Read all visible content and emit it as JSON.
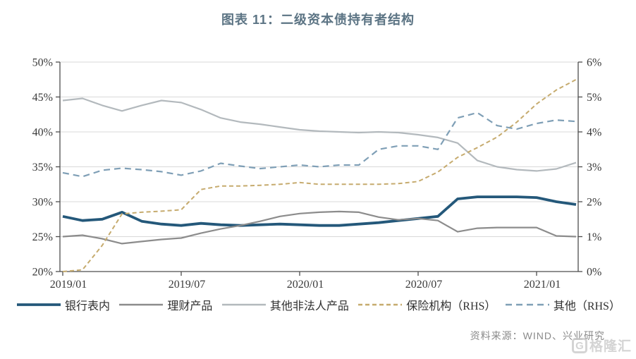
{
  "title": "图表 11：二级资本债持有者结构",
  "source": "资料来源：WIND、兴业研究",
  "watermark": {
    "icon": "G",
    "text": "格隆汇"
  },
  "colors": {
    "title": "#5c7484",
    "axis_text": "#3a3a3a",
    "axis_line": "#4d4d4d",
    "grid": "#d9d9d9",
    "source_text": "#8a8a8a",
    "watermark": "#c6c6c6"
  },
  "chart_data": {
    "type": "line",
    "x_labels": [
      "2019/01",
      "2019/02",
      "2019/03",
      "2019/04",
      "2019/05",
      "2019/06",
      "2019/07",
      "2019/08",
      "2019/09",
      "2019/10",
      "2019/11",
      "2019/12",
      "2020/01",
      "2020/02",
      "2020/03",
      "2020/04",
      "2020/05",
      "2020/06",
      "2020/07",
      "2020/08",
      "2020/09",
      "2020/10",
      "2020/11",
      "2020/12",
      "2021/01",
      "2021/02",
      "2021/03"
    ],
    "x_tick_labels": [
      "2019/01",
      "2019/07",
      "2020/01",
      "2020/07",
      "2021/01"
    ],
    "x_tick_indices": [
      0,
      6,
      12,
      18,
      24
    ],
    "left_axis": {
      "min": 20,
      "max": 50,
      "step": 5,
      "tick_labels": [
        "20%",
        "25%",
        "30%",
        "35%",
        "40%",
        "45%",
        "50%"
      ]
    },
    "right_axis": {
      "min": 0,
      "max": 6,
      "step": 1,
      "tick_labels": [
        "0%",
        "1%",
        "2%",
        "3%",
        "4%",
        "5%",
        "6%"
      ]
    },
    "grid": true,
    "legend_position": "bottom",
    "series": [
      {
        "name": "银行表内",
        "axis": "left",
        "color": "#24587a",
        "width": 3.8,
        "dash": null,
        "values": [
          27.9,
          27.3,
          27.5,
          28.5,
          27.2,
          26.8,
          26.6,
          26.9,
          26.7,
          26.6,
          26.7,
          26.8,
          26.7,
          26.6,
          26.6,
          26.8,
          27.0,
          27.3,
          27.6,
          27.9,
          30.4,
          30.7,
          30.7,
          30.7,
          30.6,
          30.0,
          29.6
        ]
      },
      {
        "name": "理财产品",
        "axis": "left",
        "color": "#8c8c8c",
        "width": 2.2,
        "dash": null,
        "values": [
          25.0,
          25.2,
          24.7,
          24.0,
          24.3,
          24.6,
          24.8,
          25.5,
          26.1,
          26.6,
          27.2,
          27.9,
          28.3,
          28.5,
          28.6,
          28.5,
          27.8,
          27.4,
          27.6,
          27.3,
          25.7,
          26.2,
          26.3,
          26.3,
          26.3,
          25.1,
          25.0
        ]
      },
      {
        "name": "其他非法人产品",
        "axis": "left",
        "color": "#b3b9bd",
        "width": 2.2,
        "dash": null,
        "values": [
          44.5,
          44.8,
          43.8,
          43.0,
          43.8,
          44.5,
          44.2,
          43.2,
          42.0,
          41.4,
          41.1,
          40.7,
          40.3,
          40.1,
          40.0,
          39.9,
          40.0,
          39.9,
          39.6,
          39.2,
          38.4,
          35.9,
          35.0,
          34.6,
          34.4,
          34.7,
          35.6
        ]
      },
      {
        "name": "保险机构（RHS）",
        "axis": "right",
        "color": "#c6ab6e",
        "width": 2.0,
        "dash": "6,4",
        "values": [
          0.0,
          0.05,
          0.75,
          1.65,
          1.7,
          1.73,
          1.77,
          2.35,
          2.45,
          2.45,
          2.47,
          2.5,
          2.55,
          2.5,
          2.5,
          2.5,
          2.5,
          2.52,
          2.58,
          2.85,
          3.27,
          3.55,
          3.85,
          4.28,
          4.8,
          5.2,
          5.5
        ]
      },
      {
        "name": "其他（RHS）",
        "axis": "right",
        "color": "#7f9fb6",
        "width": 2.2,
        "dash": "9,6",
        "values": [
          2.83,
          2.72,
          2.9,
          2.96,
          2.92,
          2.86,
          2.76,
          2.88,
          3.1,
          3.02,
          2.95,
          3.0,
          3.05,
          3.0,
          3.05,
          3.05,
          3.5,
          3.6,
          3.6,
          3.5,
          4.4,
          4.55,
          4.18,
          4.08,
          4.24,
          4.34,
          4.3
        ]
      }
    ]
  }
}
